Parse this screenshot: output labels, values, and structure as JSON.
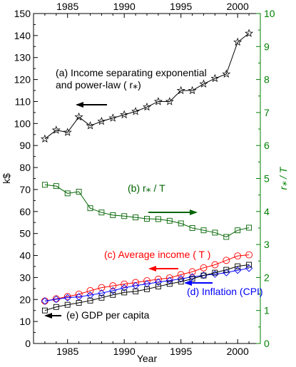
{
  "chart_data": {
    "type": "line",
    "x_axis": {
      "label": "Year",
      "range": [
        1982,
        2002
      ],
      "ticks": [
        1985,
        1990,
        1995,
        2000
      ],
      "top_ticks": [
        1985,
        1990,
        1995,
        2000
      ]
    },
    "y_left": {
      "label": "k$",
      "range": [
        0,
        150
      ],
      "ticks": [
        0,
        10,
        20,
        30,
        40,
        50,
        60,
        70,
        80,
        90,
        100,
        110,
        120,
        130,
        140,
        150
      ],
      "color": "#000000"
    },
    "y_right": {
      "label": "r⁎ / T",
      "range": [
        0,
        10
      ],
      "ticks": [
        0,
        1,
        2,
        3,
        4,
        5,
        6,
        7,
        8,
        9,
        10
      ],
      "color": "#008000"
    },
    "series": [
      {
        "key": "a",
        "label_lines": [
          "(a) Income separating exponential",
          "and power-law ( r⁎)"
        ],
        "axis": "left",
        "color": "#000000",
        "marker": "star",
        "arrow": "left",
        "x": [
          1983,
          1984,
          1985,
          1986,
          1987,
          1988,
          1989,
          1990,
          1991,
          1992,
          1993,
          1994,
          1995,
          1996,
          1997,
          1998,
          1999,
          2000,
          2001
        ],
        "values": [
          93,
          97,
          96,
          103,
          99,
          101,
          102.5,
          104,
          105.5,
          107.5,
          110,
          110,
          115,
          115,
          118,
          120.5,
          122.5,
          137,
          141
        ]
      },
      {
        "key": "b",
        "label": "(b)  r⁎ / T",
        "axis": "right",
        "color": "#006400",
        "marker": "square",
        "arrow": "right",
        "x": [
          1983,
          1984,
          1985,
          1986,
          1987,
          1988,
          1989,
          1990,
          1991,
          1992,
          1993,
          1994,
          1995,
          1996,
          1997,
          1998,
          1999,
          2000,
          2001
        ],
        "values": [
          4.81,
          4.77,
          4.55,
          4.6,
          4.1,
          3.97,
          3.89,
          3.86,
          3.82,
          3.78,
          3.77,
          3.72,
          3.64,
          3.5,
          3.43,
          3.36,
          3.23,
          3.43,
          3.51
        ]
      },
      {
        "key": "c",
        "label": "(c) Average income ( T )",
        "axis": "left",
        "color": "#ff0000",
        "marker": "circle",
        "arrow": "left",
        "x": [
          1983,
          1984,
          1985,
          1986,
          1987,
          1988,
          1989,
          1990,
          1991,
          1992,
          1993,
          1994,
          1995,
          1996,
          1997,
          1998,
          1999,
          2000,
          2001
        ],
        "values": [
          19.3,
          20.3,
          21.3,
          22.4,
          24,
          25.4,
          26.2,
          27,
          27.7,
          28.5,
          29.2,
          29.8,
          31.3,
          32.6,
          34.4,
          35.8,
          37.8,
          39.8,
          40.3
        ]
      },
      {
        "key": "d",
        "label": "(d) Inflation (CPI)",
        "axis": "left",
        "color": "#0000ff",
        "marker": "diamond",
        "arrow": "left",
        "x": [
          1983,
          1984,
          1985,
          1986,
          1987,
          1988,
          1989,
          1990,
          1991,
          1992,
          1993,
          1994,
          1995,
          1996,
          1997,
          1998,
          1999,
          2000,
          2001
        ],
        "values": [
          19.3,
          20.1,
          20.8,
          21.2,
          22,
          22.9,
          24,
          25.3,
          26.3,
          27.1,
          27.9,
          28.6,
          29.4,
          30.3,
          31,
          31.5,
          32.2,
          33.3,
          34.2
        ]
      },
      {
        "key": "e",
        "label": "(e) GDP per capita",
        "axis": "left",
        "color": "#000000",
        "marker": "square",
        "arrow": "left",
        "x": [
          1983,
          1984,
          1985,
          1986,
          1987,
          1988,
          1989,
          1990,
          1991,
          1992,
          1993,
          1994,
          1995,
          1996,
          1997,
          1998,
          1999,
          2000,
          2001
        ],
        "values": [
          15,
          16.6,
          17.6,
          18.5,
          19.5,
          20.8,
          22.1,
          23.2,
          23.7,
          24.7,
          25.9,
          27.1,
          28.1,
          29.4,
          30.9,
          32.2,
          33.5,
          35.1,
          35.8
        ]
      }
    ],
    "grid": false,
    "legend": "inline labels"
  }
}
